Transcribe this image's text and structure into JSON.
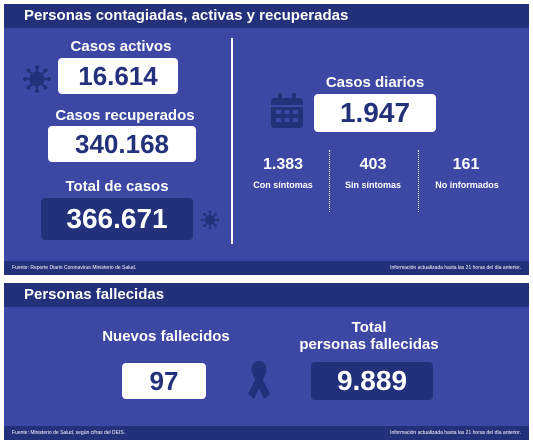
{
  "top": {
    "title": "Personas contagiadas, activas y recuperadas",
    "activos": {
      "label": "Casos activos",
      "value": "16.614"
    },
    "recuperados": {
      "label": "Casos recuperados",
      "value": "340.168"
    },
    "total": {
      "label": "Total de casos",
      "value": "366.671"
    },
    "diarios": {
      "label": "Casos diarios",
      "value": "1.947"
    },
    "breakdown": [
      {
        "value": "1.383",
        "label": "Con síntomas"
      },
      {
        "value": "403",
        "label": "Sin síntomas"
      },
      {
        "value": "161",
        "label": "No informados"
      }
    ],
    "footer_left": "Fuente: Reporte Diario Coronavirus Ministerio de Salud.",
    "footer_right": "Información actualizada hasta las 21 horas  del día anterior."
  },
  "bottom": {
    "title": "Personas fallecidas",
    "nuevos": {
      "label": "Nuevos fallecidos",
      "value": "97"
    },
    "total": {
      "label_line1": "Total",
      "label_line2": "personas fallecidas",
      "value": "9.889"
    },
    "footer_left": "Fuente: Ministerio de Salud, según cifras del DEIS.",
    "footer_right": "Información actualizada hasta las 21 horas  del día anterior."
  },
  "icons": [
    "virus-icon",
    "calendar-icon",
    "ribbon-icon"
  ],
  "colors": {
    "panel": "#3c48a4",
    "dark": "#23307a",
    "white": "#ffffff"
  }
}
